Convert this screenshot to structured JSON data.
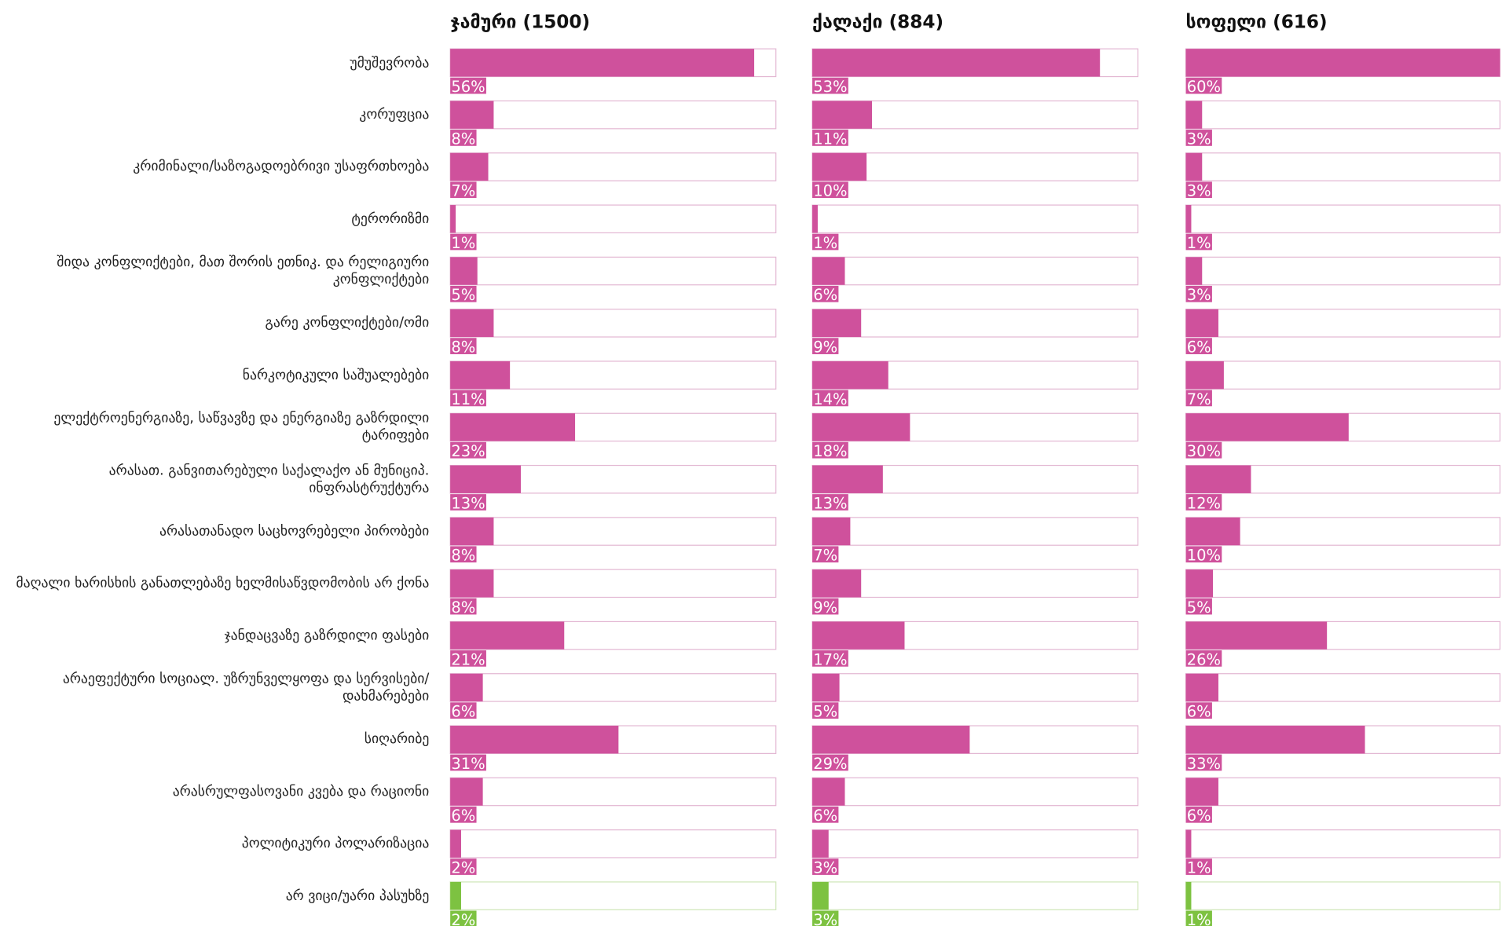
{
  "chart_data": {
    "type": "bar",
    "orientation": "horizontal",
    "categories": [
      "უმუშევრობა",
      "კორუფცია",
      "კრიმინალი/საზოგადოებრივი უსაფრთხოება",
      "ტერორიზმი",
      "შიდა კონფლიქტები, მათ შორის ეთნიკ. და რელიგიური კონფლიქტები",
      "გარე კონფლიქტები/ომი",
      "ნარკოტიკული საშუალებები",
      "ელექტროენერგიაზე, საწვავზე და ენერგიაზე გაზრდილი ტარიფები",
      "არასათ. განვითარებული საქალაქო ან მუნიციპ. ინფრასტრუქტურა",
      "არასათანადო საცხოვრებელი პირობები",
      "მაღალი ხარისხის განათლებაზე ხელმისაწვდომობის არ ქონა",
      "ჯანდაცვაზე გაზრდილი ფასები",
      "არაეფექტური სოციალ. უზრუნველყოფა და სერვისები/ დახმარებები",
      "სიღარიბე",
      "არასრულფასოვანი კვება და რაციონი",
      "პოლიტიკური პოლარიზაცია",
      "არ ვიცი/უარი პასუხზე"
    ],
    "colors": [
      "#cf519c",
      "#cf519c",
      "#cf519c",
      "#cf519c",
      "#cf519c",
      "#cf519c",
      "#cf519c",
      "#cf519c",
      "#cf519c",
      "#cf519c",
      "#cf519c",
      "#cf519c",
      "#cf519c",
      "#cf519c",
      "#cf519c",
      "#cf519c",
      "#7dc241"
    ],
    "xlim": [
      0,
      60
    ],
    "series": [
      {
        "name": "ჯამური (1500)",
        "values": [
          56,
          8,
          7,
          1,
          5,
          8,
          11,
          23,
          13,
          8,
          8,
          21,
          6,
          31,
          6,
          2,
          2
        ],
        "value_labels": [
          "56%",
          "8%",
          "7%",
          "1%",
          "5%",
          "8%",
          "11%",
          "23%",
          "13%",
          "8%",
          "8%",
          "21%",
          "6%",
          "31%",
          "6%",
          "2%",
          "2%"
        ]
      },
      {
        "name": "ქალაქი (884)",
        "values": [
          53,
          11,
          10,
          1,
          6,
          9,
          14,
          18,
          13,
          7,
          9,
          17,
          5,
          29,
          6,
          3,
          3
        ],
        "value_labels": [
          "53%",
          "11%",
          "10%",
          "1%",
          "6%",
          "9%",
          "14%",
          "18%",
          "13%",
          "7%",
          "9%",
          "17%",
          "5%",
          "29%",
          "6%",
          "3%",
          "3%"
        ]
      },
      {
        "name": "სოფელი (616)",
        "values": [
          60,
          3,
          3,
          1,
          3,
          6,
          7,
          30,
          12,
          10,
          5,
          26,
          6,
          33,
          6,
          1,
          1
        ],
        "value_labels": [
          "60%",
          "3%",
          "3%",
          "1%",
          "3%",
          "6%",
          "7%",
          "30%",
          "12%",
          "10%",
          "5%",
          "26%",
          "6%",
          "33%",
          "6%",
          "1%",
          "1%"
        ]
      }
    ]
  }
}
